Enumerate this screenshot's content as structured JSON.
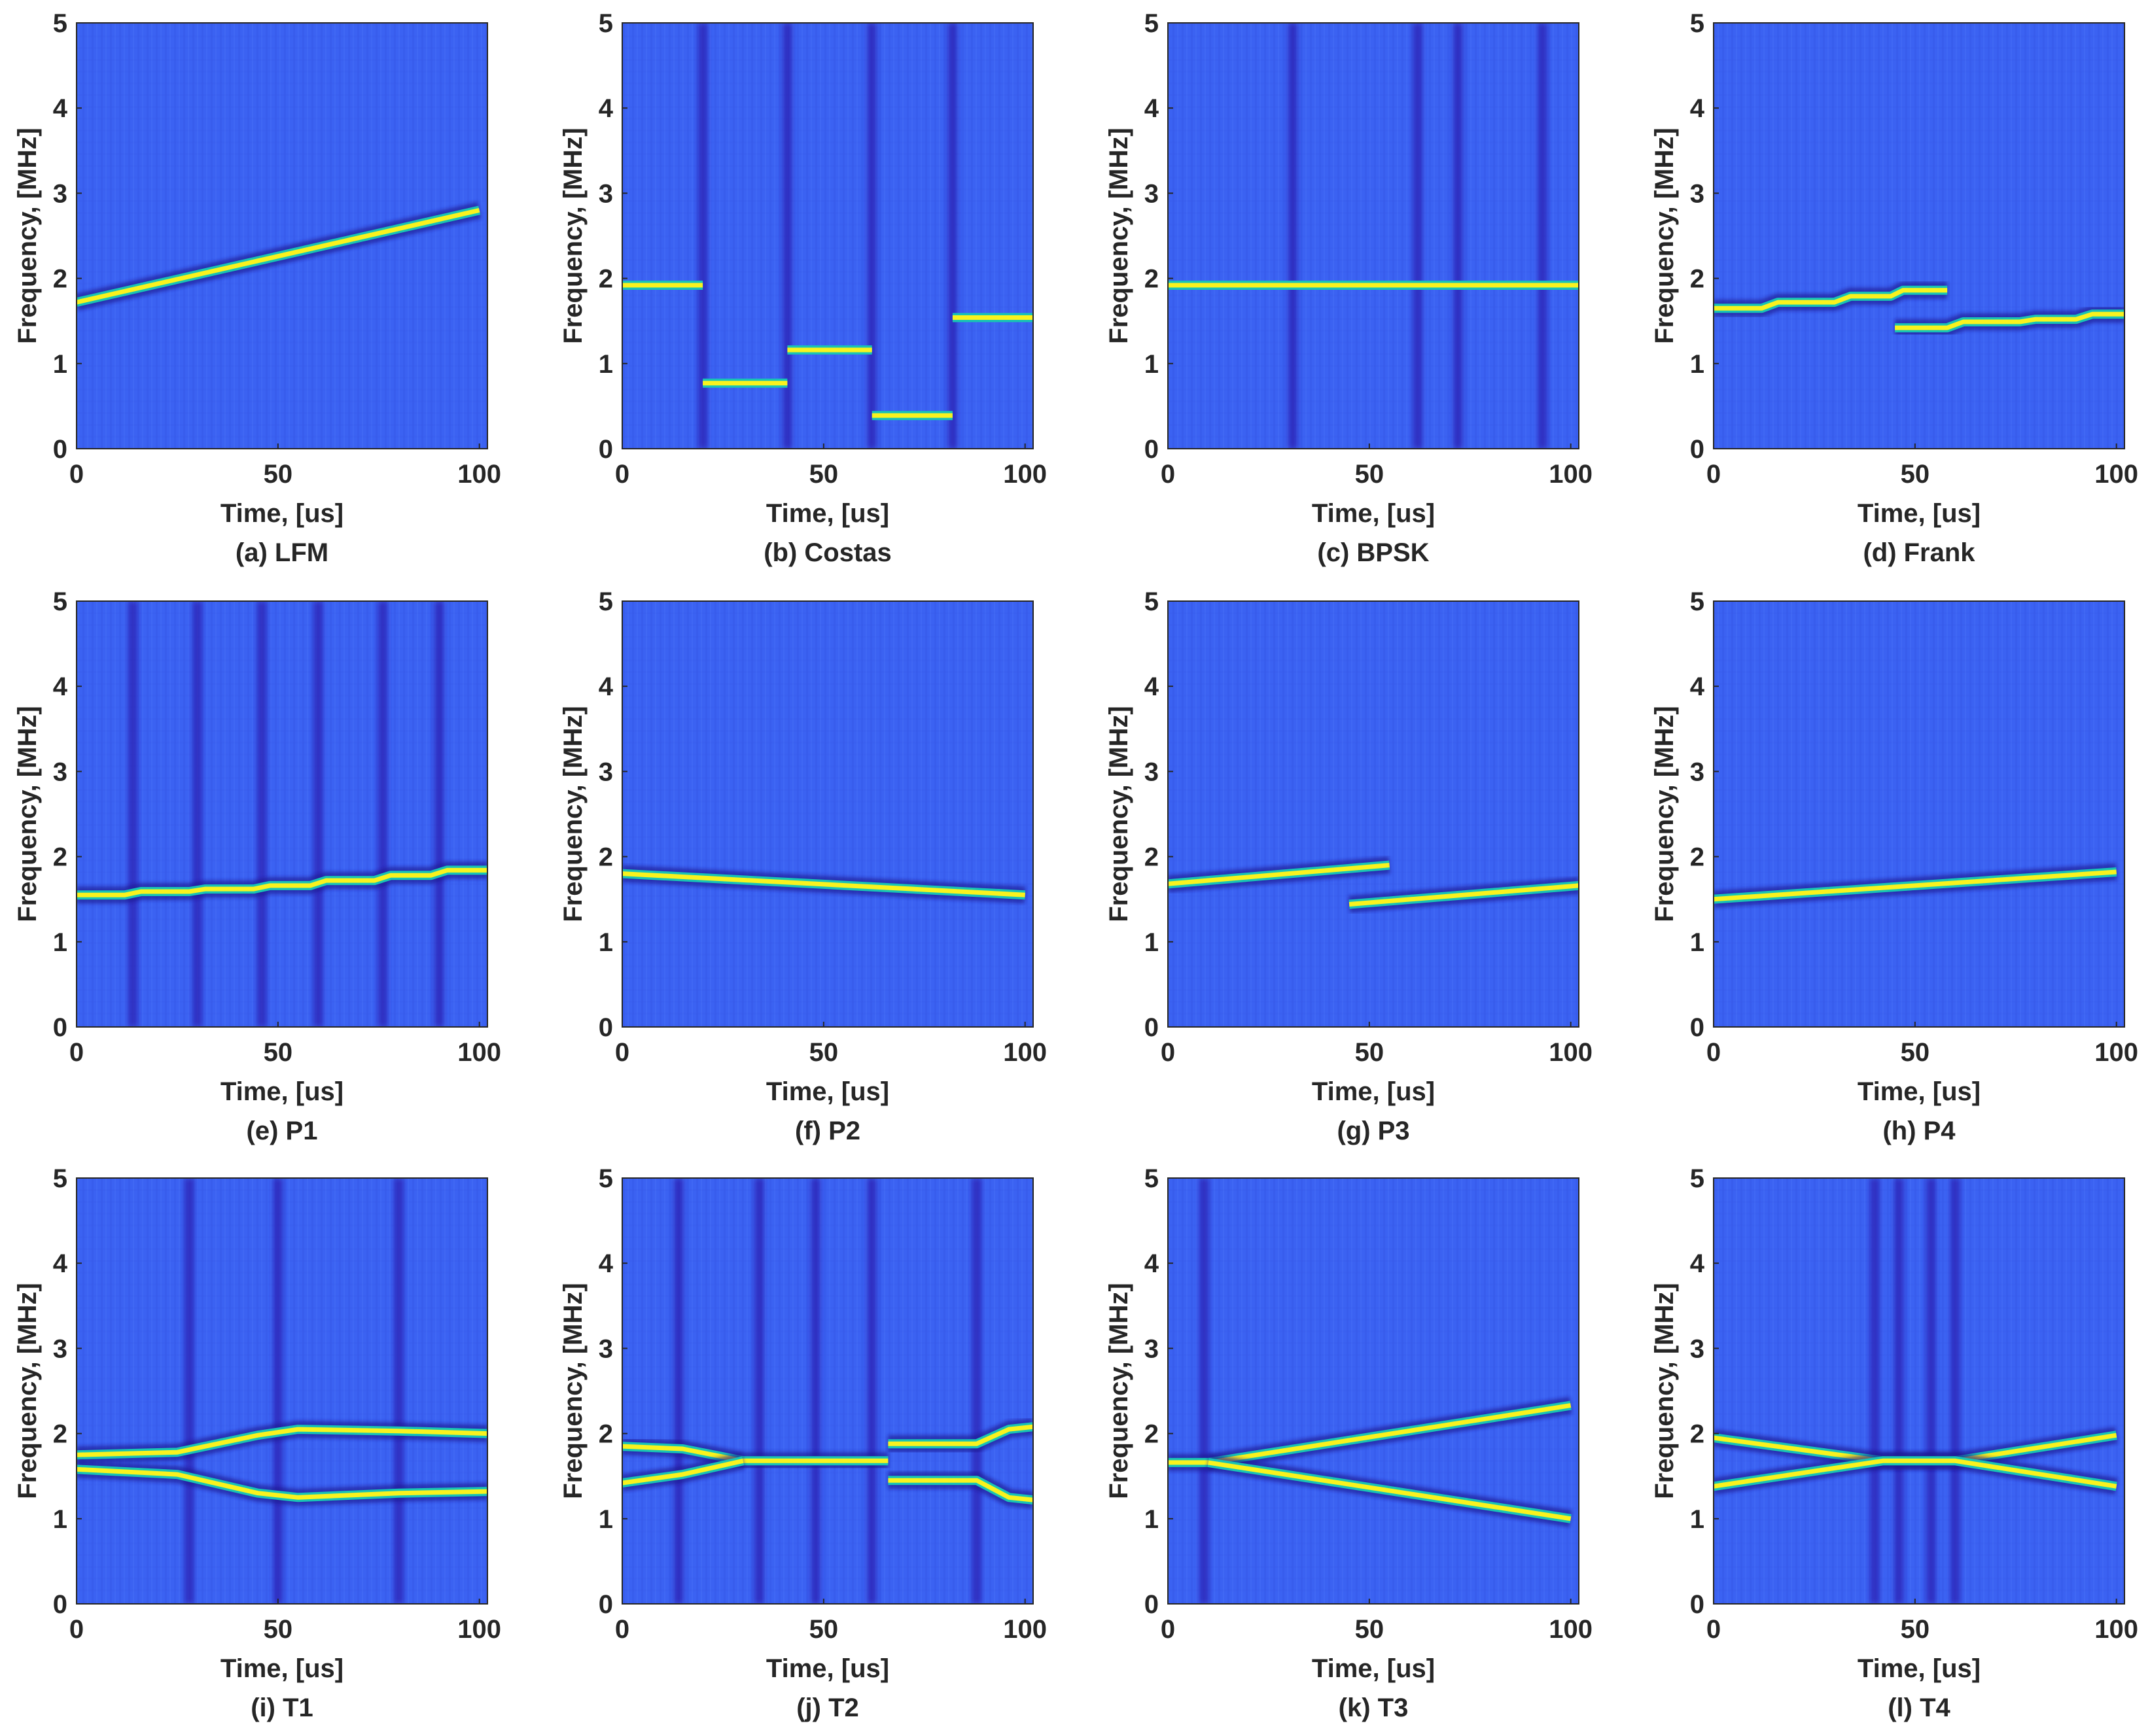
{
  "figure": {
    "colors": {
      "background_field": "#3b62f2",
      "dark_stripe": "#2b1fb0",
      "mid_stripe": "#3aa6e8",
      "ridge": "#f9f21e",
      "ridge_halo": "#18c3b5",
      "ridge_dark_edge": "#1b1490",
      "axis": "#262626"
    }
  },
  "chart_data": [
    {
      "type": "heatmap",
      "id": "a",
      "caption": "(a) LFM",
      "xlabel": "Time, [us]",
      "ylabel": "Frequency, [MHz]",
      "xlim": [
        0,
        102
      ],
      "ylim": [
        0,
        5
      ],
      "xticks": [
        "0",
        "50",
        "100"
      ],
      "yticks": [
        "0",
        "1",
        "2",
        "3",
        "4",
        "5"
      ],
      "ridges": [
        {
          "x": [
            0,
            100
          ],
          "y": [
            1.72,
            2.8
          ]
        }
      ],
      "dark_columns": []
    },
    {
      "type": "heatmap",
      "id": "b",
      "caption": "(b) Costas",
      "xlabel": "Time, [us]",
      "ylabel": "Frequency, [MHz]",
      "xlim": [
        0,
        102
      ],
      "ylim": [
        0,
        5
      ],
      "xticks": [
        "0",
        "50",
        "100"
      ],
      "yticks": [
        "0",
        "1",
        "2",
        "3",
        "4",
        "5"
      ],
      "ridges": [
        {
          "x": [
            0,
            20
          ],
          "y": [
            1.92,
            1.92
          ]
        },
        {
          "x": [
            20,
            41
          ],
          "y": [
            0.77,
            0.77
          ]
        },
        {
          "x": [
            41,
            62
          ],
          "y": [
            1.16,
            1.16
          ]
        },
        {
          "x": [
            62,
            82
          ],
          "y": [
            0.39,
            0.39
          ]
        },
        {
          "x": [
            82,
            102
          ],
          "y": [
            1.54,
            1.54
          ]
        }
      ],
      "dark_columns": [
        20,
        41,
        62,
        82
      ]
    },
    {
      "type": "heatmap",
      "id": "c",
      "caption": "(c) BPSK",
      "xlabel": "Time, [us]",
      "ylabel": "Frequency, [MHz]",
      "xlim": [
        0,
        102
      ],
      "ylim": [
        0,
        5
      ],
      "xticks": [
        "0",
        "50",
        "100"
      ],
      "yticks": [
        "0",
        "1",
        "2",
        "3",
        "4",
        "5"
      ],
      "ridges": [
        {
          "x": [
            0,
            102
          ],
          "y": [
            1.92,
            1.92
          ]
        }
      ],
      "dark_columns": [
        31,
        62,
        72,
        93
      ]
    },
    {
      "type": "heatmap",
      "id": "d",
      "caption": "(d) Frank",
      "xlabel": "Time, [us]",
      "ylabel": "Frequency, [MHz]",
      "xlim": [
        0,
        102
      ],
      "ylim": [
        0,
        5
      ],
      "xticks": [
        "0",
        "50",
        "100"
      ],
      "yticks": [
        "0",
        "1",
        "2",
        "3",
        "4",
        "5"
      ],
      "ridges": [
        {
          "x": [
            0,
            12,
            16,
            30,
            34,
            44,
            47,
            58
          ],
          "y": [
            1.65,
            1.65,
            1.72,
            1.72,
            1.79,
            1.79,
            1.86,
            1.86
          ]
        },
        {
          "x": [
            45,
            58,
            62,
            76,
            80,
            90,
            94,
            102
          ],
          "y": [
            1.42,
            1.42,
            1.49,
            1.49,
            1.52,
            1.52,
            1.58,
            1.58
          ]
        }
      ],
      "dark_columns": []
    },
    {
      "type": "heatmap",
      "id": "e",
      "caption": "(e) P1",
      "xlabel": "Time, [us]",
      "ylabel": "Frequency, [MHz]",
      "xlim": [
        0,
        102
      ],
      "ylim": [
        0,
        5
      ],
      "xticks": [
        "0",
        "50",
        "100"
      ],
      "yticks": [
        "0",
        "1",
        "2",
        "3",
        "4",
        "5"
      ],
      "ridges": [
        {
          "x": [
            0,
            12,
            16,
            28,
            32,
            44,
            48,
            58,
            62,
            74,
            78,
            88,
            92,
            102
          ],
          "y": [
            1.55,
            1.55,
            1.59,
            1.59,
            1.62,
            1.62,
            1.66,
            1.66,
            1.72,
            1.72,
            1.78,
            1.78,
            1.84,
            1.84
          ]
        }
      ],
      "dark_columns": [
        14,
        30,
        46,
        60,
        76,
        90
      ]
    },
    {
      "type": "heatmap",
      "id": "f",
      "caption": "(f) P2",
      "xlabel": "Time, [us]",
      "ylabel": "Frequency, [MHz]",
      "xlim": [
        0,
        102
      ],
      "ylim": [
        0,
        5
      ],
      "xticks": [
        "0",
        "50",
        "100"
      ],
      "yticks": [
        "0",
        "1",
        "2",
        "3",
        "4",
        "5"
      ],
      "ridges": [
        {
          "x": [
            0,
            100
          ],
          "y": [
            1.8,
            1.55
          ]
        }
      ],
      "dark_columns": []
    },
    {
      "type": "heatmap",
      "id": "g",
      "caption": "(g) P3",
      "xlabel": "Time, [us]",
      "ylabel": "Frequency, [MHz]",
      "xlim": [
        0,
        102
      ],
      "ylim": [
        0,
        5
      ],
      "xticks": [
        "0",
        "50",
        "100"
      ],
      "yticks": [
        "0",
        "1",
        "2",
        "3",
        "4",
        "5"
      ],
      "ridges": [
        {
          "x": [
            0,
            55
          ],
          "y": [
            1.68,
            1.9
          ]
        },
        {
          "x": [
            45,
            102
          ],
          "y": [
            1.44,
            1.66
          ]
        }
      ],
      "dark_columns": []
    },
    {
      "type": "heatmap",
      "id": "h",
      "caption": "(h) P4",
      "xlabel": "Time, [us]",
      "ylabel": "Frequency, [MHz]",
      "xlim": [
        0,
        102
      ],
      "ylim": [
        0,
        5
      ],
      "xticks": [
        "0",
        "50",
        "100"
      ],
      "yticks": [
        "0",
        "1",
        "2",
        "3",
        "4",
        "5"
      ],
      "ridges": [
        {
          "x": [
            0,
            100
          ],
          "y": [
            1.5,
            1.82
          ]
        }
      ],
      "dark_columns": []
    },
    {
      "type": "heatmap",
      "id": "i",
      "caption": "(i) T1",
      "xlabel": "Time, [us]",
      "ylabel": "Frequency, [MHz]",
      "xlim": [
        0,
        102
      ],
      "ylim": [
        0,
        5
      ],
      "xticks": [
        "0",
        "50",
        "100"
      ],
      "yticks": [
        "0",
        "1",
        "2",
        "3",
        "4",
        "5"
      ],
      "ridges": [
        {
          "x": [
            0,
            25,
            45,
            55,
            80,
            102
          ],
          "y": [
            1.75,
            1.78,
            1.98,
            2.05,
            2.03,
            2.0
          ]
        },
        {
          "x": [
            0,
            25,
            45,
            55,
            80,
            102
          ],
          "y": [
            1.58,
            1.52,
            1.3,
            1.25,
            1.3,
            1.32
          ]
        }
      ],
      "dark_columns": [
        28,
        50,
        80
      ]
    },
    {
      "type": "heatmap",
      "id": "j",
      "caption": "(j) T2",
      "xlabel": "Time, [us]",
      "ylabel": "Frequency, [MHz]",
      "xlim": [
        0,
        102
      ],
      "ylim": [
        0,
        5
      ],
      "xticks": [
        "0",
        "50",
        "100"
      ],
      "yticks": [
        "0",
        "1",
        "2",
        "3",
        "4",
        "5"
      ],
      "ridges": [
        {
          "x": [
            0,
            15,
            30,
            66
          ],
          "y": [
            1.85,
            1.82,
            1.68,
            1.68
          ]
        },
        {
          "x": [
            0,
            15,
            30
          ],
          "y": [
            1.42,
            1.52,
            1.68
          ]
        },
        {
          "x": [
            66,
            88,
            96,
            102
          ],
          "y": [
            1.88,
            1.88,
            2.05,
            2.08
          ]
        },
        {
          "x": [
            66,
            88,
            96,
            102
          ],
          "y": [
            1.45,
            1.45,
            1.25,
            1.22
          ]
        }
      ],
      "dark_columns": [
        14,
        34,
        48,
        62,
        88
      ]
    },
    {
      "type": "heatmap",
      "id": "k",
      "caption": "(k) T3",
      "xlabel": "Time, [us]",
      "ylabel": "Frequency, [MHz]",
      "xlim": [
        0,
        102
      ],
      "ylim": [
        0,
        5
      ],
      "xticks": [
        "0",
        "50",
        "100"
      ],
      "yticks": [
        "0",
        "1",
        "2",
        "3",
        "4",
        "5"
      ],
      "ridges": [
        {
          "x": [
            0,
            10,
            100
          ],
          "y": [
            1.66,
            1.66,
            2.33
          ]
        },
        {
          "x": [
            10,
            100
          ],
          "y": [
            1.66,
            1.0
          ]
        }
      ],
      "dark_columns": [
        9
      ]
    },
    {
      "type": "heatmap",
      "id": "l",
      "caption": "(l) T4",
      "xlabel": "Time, [us]",
      "ylabel": "Frequency, [MHz]",
      "xlim": [
        0,
        102
      ],
      "ylim": [
        0,
        5
      ],
      "xticks": [
        "0",
        "50",
        "100"
      ],
      "yticks": [
        "0",
        "1",
        "2",
        "3",
        "4",
        "5"
      ],
      "ridges": [
        {
          "x": [
            0,
            42,
            60,
            100
          ],
          "y": [
            1.95,
            1.68,
            1.68,
            1.98
          ]
        },
        {
          "x": [
            0,
            42,
            60,
            100
          ],
          "y": [
            1.38,
            1.68,
            1.68,
            1.38
          ]
        }
      ],
      "dark_columns": [
        40,
        46,
        54,
        60
      ]
    }
  ]
}
